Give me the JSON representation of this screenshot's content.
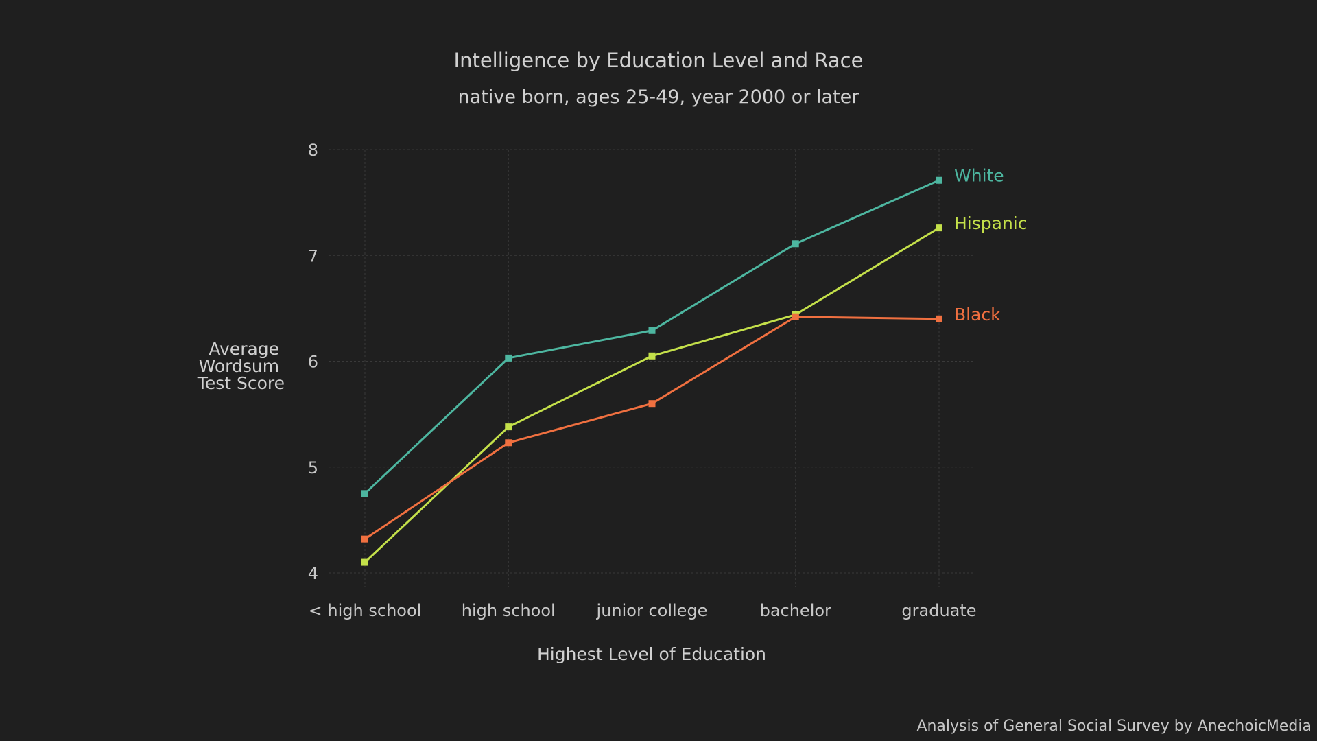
{
  "chart_data": {
    "type": "line",
    "title": "Intelligence by Education Level and Race",
    "subtitle": "native born, ages 25-49, year 2000 or later",
    "xlabel": "Highest Level of Education",
    "ylabel_lines": [
      "Average",
      "Wordsum",
      "Test Score"
    ],
    "categories": [
      "< high school",
      "high school",
      "junior college",
      "bachelor",
      "graduate"
    ],
    "ylim": [
      4,
      8
    ],
    "yticks": [
      4,
      5,
      6,
      7,
      8
    ],
    "grid": true,
    "legend": "inline labels at line ends",
    "series": [
      {
        "name": "White",
        "color": "#4db6a0",
        "values": [
          4.75,
          6.03,
          6.29,
          7.11,
          7.71
        ]
      },
      {
        "name": "Hispanic",
        "color": "#c4e04a",
        "values": [
          4.1,
          5.38,
          6.05,
          6.44,
          7.26
        ]
      },
      {
        "name": "Black",
        "color": "#f07040",
        "values": [
          4.32,
          5.23,
          5.6,
          6.42,
          6.4
        ]
      }
    ]
  },
  "caption": "Analysis of General Social Survey by AnechoicMedia"
}
